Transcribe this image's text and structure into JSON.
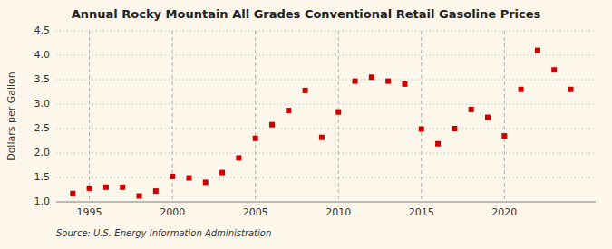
{
  "chart_data": {
    "type": "scatter",
    "title": "Annual Rocky Mountain All Grades Conventional Retail Gasoline Prices",
    "ylabel": "Dollars per Gallon",
    "source": "Source: U.S. Energy Information Administration",
    "x": [
      1994,
      1995,
      1996,
      1997,
      1998,
      1999,
      2000,
      2001,
      2002,
      2003,
      2004,
      2005,
      2006,
      2007,
      2008,
      2009,
      2010,
      2011,
      2012,
      2013,
      2014,
      2015,
      2016,
      2017,
      2018,
      2019,
      2020,
      2021,
      2022,
      2023,
      2024
    ],
    "values": [
      1.17,
      1.28,
      1.3,
      1.3,
      1.12,
      1.22,
      1.52,
      1.49,
      1.4,
      1.6,
      1.9,
      2.3,
      2.58,
      2.87,
      3.28,
      2.32,
      2.84,
      3.47,
      3.55,
      3.47,
      3.41,
      2.49,
      2.19,
      2.5,
      2.89,
      2.73,
      2.35,
      3.3,
      4.1,
      3.7,
      3.3
    ],
    "color": "#cc0000",
    "marker": "square",
    "xlim": [
      1993.0,
      2025.5
    ],
    "ylim": [
      1.0,
      4.5
    ],
    "xticks": [
      1995,
      2000,
      2005,
      2010,
      2015,
      2020
    ],
    "yticks": [
      {
        "value": 1.0,
        "label": "1.0"
      },
      1.5,
      {
        "value": 2.0,
        "label": "2.0"
      },
      2.5,
      {
        "value": 3.0,
        "label": "3.0"
      },
      3.5,
      {
        "value": 4.0,
        "label": "4.0"
      },
      4.5
    ],
    "grid": true
  }
}
